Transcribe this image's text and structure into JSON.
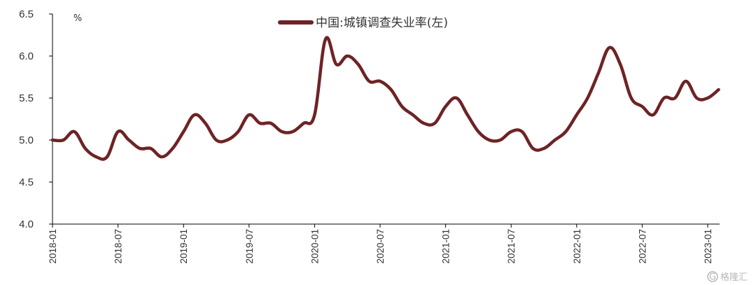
{
  "chart_data": {
    "type": "line",
    "unit": "%",
    "ylim": [
      4.0,
      6.5
    ],
    "yticks": [
      "4.0",
      "4.5",
      "5.0",
      "5.5",
      "6.0",
      "6.5"
    ],
    "x_tick_labels": [
      "2018-01",
      "2018-07",
      "2019-01",
      "2019-07",
      "2020-01",
      "2020-07",
      "2021-01",
      "2021-07",
      "2022-01",
      "2022-07",
      "2023-01"
    ],
    "grid": false,
    "legend_position": "top-center",
    "series": [
      {
        "name": "中国:城镇调查失业率(左)",
        "color": "#6e2325",
        "x": [
          "2018-01",
          "2018-02",
          "2018-03",
          "2018-04",
          "2018-05",
          "2018-06",
          "2018-07",
          "2018-08",
          "2018-09",
          "2018-10",
          "2018-11",
          "2018-12",
          "2019-01",
          "2019-02",
          "2019-03",
          "2019-04",
          "2019-05",
          "2019-06",
          "2019-07",
          "2019-08",
          "2019-09",
          "2019-10",
          "2019-11",
          "2019-12",
          "2020-01",
          "2020-02",
          "2020-03",
          "2020-04",
          "2020-05",
          "2020-06",
          "2020-07",
          "2020-08",
          "2020-09",
          "2020-10",
          "2020-11",
          "2020-12",
          "2021-01",
          "2021-02",
          "2021-03",
          "2021-04",
          "2021-05",
          "2021-06",
          "2021-07",
          "2021-08",
          "2021-09",
          "2021-10",
          "2021-11",
          "2021-12",
          "2022-01",
          "2022-02",
          "2022-03",
          "2022-04",
          "2022-05",
          "2022-06",
          "2022-07",
          "2022-08",
          "2022-09",
          "2022-10",
          "2022-11",
          "2022-12",
          "2023-01",
          "2023-02"
        ],
        "values": [
          5.0,
          5.0,
          5.1,
          4.9,
          4.8,
          4.8,
          5.1,
          5.0,
          4.9,
          4.9,
          4.8,
          4.9,
          5.1,
          5.3,
          5.2,
          5.0,
          5.0,
          5.1,
          5.3,
          5.2,
          5.2,
          5.1,
          5.1,
          5.2,
          5.3,
          6.2,
          5.9,
          6.0,
          5.9,
          5.7,
          5.7,
          5.6,
          5.4,
          5.3,
          5.2,
          5.2,
          5.4,
          5.5,
          5.3,
          5.1,
          5.0,
          5.0,
          5.1,
          5.1,
          4.9,
          4.9,
          5.0,
          5.1,
          5.3,
          5.5,
          5.8,
          6.1,
          5.9,
          5.5,
          5.4,
          5.3,
          5.5,
          5.5,
          5.7,
          5.5,
          5.5,
          5.6
        ]
      }
    ]
  },
  "watermark": {
    "text": "格隆汇",
    "logo_letter": "G"
  }
}
